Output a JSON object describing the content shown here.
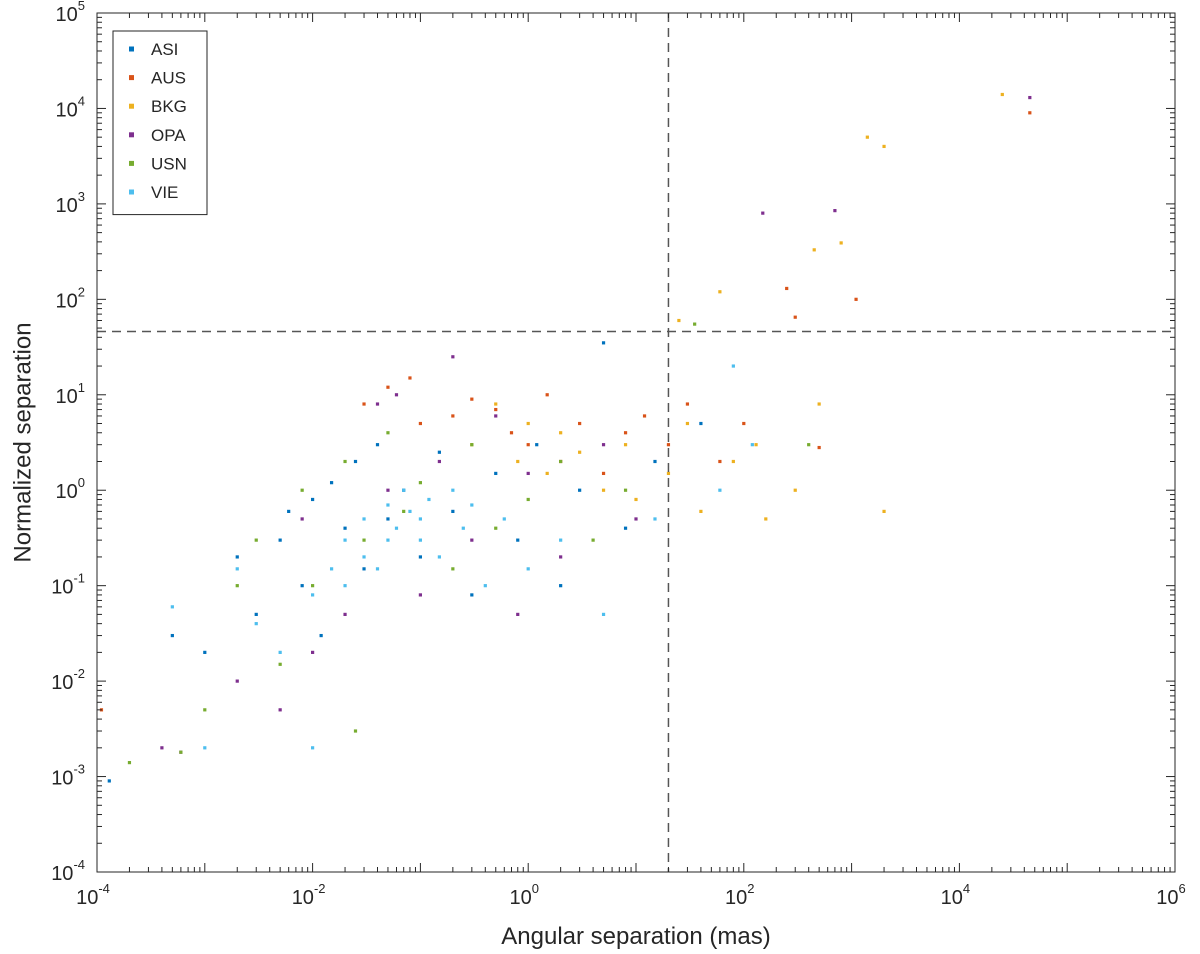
{
  "chart_data": {
    "type": "scatter",
    "x_scale": "log",
    "y_scale": "log",
    "xlabel": "Angular separation (mas)",
    "ylabel": "Normalized separation",
    "xlim": [
      0.0001,
      1000000
    ],
    "ylim": [
      0.0001,
      100000
    ],
    "x_ticks": [
      {
        "base": "10",
        "exp": "-4",
        "value": 0.0001
      },
      {
        "base": "10",
        "exp": "-2",
        "value": 0.01
      },
      {
        "base": "10",
        "exp": "0",
        "value": 1
      },
      {
        "base": "10",
        "exp": "2",
        "value": 100
      },
      {
        "base": "10",
        "exp": "4",
        "value": 10000
      },
      {
        "base": "10",
        "exp": "6",
        "value": 1000000
      }
    ],
    "y_ticks": [
      {
        "base": "10",
        "exp": "-4",
        "value": 0.0001
      },
      {
        "base": "10",
        "exp": "-3",
        "value": 0.001
      },
      {
        "base": "10",
        "exp": "-2",
        "value": 0.01
      },
      {
        "base": "10",
        "exp": "-1",
        "value": 0.1
      },
      {
        "base": "10",
        "exp": "0",
        "value": 1
      },
      {
        "base": "10",
        "exp": "1",
        "value": 10
      },
      {
        "base": "10",
        "exp": "2",
        "value": 100
      },
      {
        "base": "10",
        "exp": "3",
        "value": 1000
      },
      {
        "base": "10",
        "exp": "4",
        "value": 10000
      },
      {
        "base": "10",
        "exp": "5",
        "value": 100000
      }
    ],
    "reference_lines": {
      "x_threshold": 20,
      "y_threshold": 46,
      "style": "dashed"
    },
    "grid": false,
    "legend_position": "top-left",
    "series": [
      {
        "name": "ASI",
        "color": "#0072BD",
        "points": [
          [
            0.00013,
            0.0009
          ],
          [
            0.0005,
            0.03
          ],
          [
            0.001,
            0.02
          ],
          [
            0.002,
            0.2
          ],
          [
            0.003,
            0.05
          ],
          [
            0.005,
            0.3
          ],
          [
            0.006,
            0.6
          ],
          [
            0.008,
            0.1
          ],
          [
            0.01,
            0.8
          ],
          [
            0.012,
            0.03
          ],
          [
            0.015,
            1.2
          ],
          [
            0.02,
            0.4
          ],
          [
            0.025,
            2
          ],
          [
            0.03,
            0.15
          ],
          [
            0.04,
            3
          ],
          [
            0.05,
            0.5
          ],
          [
            0.07,
            1
          ],
          [
            0.1,
            0.2
          ],
          [
            0.15,
            2.5
          ],
          [
            0.2,
            0.6
          ],
          [
            0.3,
            0.08
          ],
          [
            0.5,
            1.5
          ],
          [
            0.8,
            0.3
          ],
          [
            1.2,
            3
          ],
          [
            2,
            0.1
          ],
          [
            3,
            1
          ],
          [
            5,
            35
          ],
          [
            8,
            0.4
          ],
          [
            15,
            2
          ],
          [
            40,
            5
          ]
        ]
      },
      {
        "name": "AUS",
        "color": "#D95319",
        "points": [
          [
            0.00011,
            0.005
          ],
          [
            0.03,
            8
          ],
          [
            0.05,
            12
          ],
          [
            0.08,
            15
          ],
          [
            0.1,
            5
          ],
          [
            0.2,
            6
          ],
          [
            0.3,
            9
          ],
          [
            0.5,
            7
          ],
          [
            0.7,
            4
          ],
          [
            1,
            3
          ],
          [
            1.5,
            10
          ],
          [
            2,
            2
          ],
          [
            3,
            5
          ],
          [
            5,
            1.5
          ],
          [
            8,
            4
          ],
          [
            12,
            6
          ],
          [
            20,
            3
          ],
          [
            30,
            8
          ],
          [
            60,
            2
          ],
          [
            100,
            5
          ],
          [
            250,
            130
          ],
          [
            300,
            65
          ],
          [
            500,
            2.8
          ],
          [
            1100,
            100
          ],
          [
            45000,
            9000
          ]
        ]
      },
      {
        "name": "BKG",
        "color": "#EDB120",
        "points": [
          [
            0.3,
            3
          ],
          [
            0.5,
            8
          ],
          [
            0.8,
            2
          ],
          [
            1,
            5
          ],
          [
            1.5,
            1.5
          ],
          [
            2,
            4
          ],
          [
            3,
            2.5
          ],
          [
            5,
            1
          ],
          [
            8,
            3
          ],
          [
            10,
            0.8
          ],
          [
            20,
            1.5
          ],
          [
            25,
            60
          ],
          [
            30,
            5
          ],
          [
            40,
            0.6
          ],
          [
            60,
            120
          ],
          [
            80,
            2
          ],
          [
            130,
            3
          ],
          [
            160,
            0.5
          ],
          [
            300,
            1
          ],
          [
            450,
            330
          ],
          [
            500,
            8
          ],
          [
            800,
            390
          ],
          [
            1400,
            5000
          ],
          [
            2000,
            4000
          ],
          [
            2000,
            0.6
          ],
          [
            25000,
            14000
          ]
        ]
      },
      {
        "name": "OPA",
        "color": "#7E2F8E",
        "points": [
          [
            0.0004,
            0.002
          ],
          [
            0.0006,
            0.0018
          ],
          [
            0.002,
            0.01
          ],
          [
            0.005,
            0.005
          ],
          [
            0.008,
            0.5
          ],
          [
            0.01,
            0.02
          ],
          [
            0.02,
            0.05
          ],
          [
            0.04,
            8
          ],
          [
            0.05,
            1
          ],
          [
            0.06,
            10
          ],
          [
            0.1,
            0.08
          ],
          [
            0.15,
            2
          ],
          [
            0.2,
            25
          ],
          [
            0.3,
            0.3
          ],
          [
            0.5,
            6
          ],
          [
            0.8,
            0.05
          ],
          [
            1,
            1.5
          ],
          [
            2,
            0.2
          ],
          [
            5,
            3
          ],
          [
            10,
            0.5
          ],
          [
            150,
            800
          ],
          [
            700,
            850
          ],
          [
            45000,
            13000
          ]
        ]
      },
      {
        "name": "USN",
        "color": "#77AC30",
        "points": [
          [
            0.0002,
            0.0014
          ],
          [
            0.0006,
            0.0018
          ],
          [
            0.001,
            0.005
          ],
          [
            0.002,
            0.1
          ],
          [
            0.003,
            0.3
          ],
          [
            0.005,
            0.015
          ],
          [
            0.008,
            1
          ],
          [
            0.01,
            0.1
          ],
          [
            0.02,
            2
          ],
          [
            0.025,
            0.003
          ],
          [
            0.03,
            0.3
          ],
          [
            0.05,
            4
          ],
          [
            0.07,
            0.6
          ],
          [
            0.1,
            1.2
          ],
          [
            0.2,
            0.15
          ],
          [
            0.3,
            3
          ],
          [
            0.5,
            0.4
          ],
          [
            1,
            0.8
          ],
          [
            2,
            2
          ],
          [
            4,
            0.3
          ],
          [
            8,
            1
          ],
          [
            35,
            55
          ],
          [
            400,
            3
          ]
        ]
      },
      {
        "name": "VIE",
        "color": "#4DBEEE",
        "points": [
          [
            0.0005,
            0.06
          ],
          [
            0.001,
            0.002
          ],
          [
            0.002,
            0.15
          ],
          [
            0.003,
            0.04
          ],
          [
            0.005,
            0.02
          ],
          [
            0.01,
            0.08
          ],
          [
            0.01,
            0.002
          ],
          [
            0.015,
            0.15
          ],
          [
            0.02,
            0.3
          ],
          [
            0.02,
            0.1
          ],
          [
            0.03,
            0.5
          ],
          [
            0.03,
            0.2
          ],
          [
            0.04,
            0.15
          ],
          [
            0.05,
            0.7
          ],
          [
            0.05,
            0.3
          ],
          [
            0.06,
            0.4
          ],
          [
            0.07,
            1
          ],
          [
            0.08,
            0.6
          ],
          [
            0.1,
            0.5
          ],
          [
            0.1,
            0.3
          ],
          [
            0.12,
            0.8
          ],
          [
            0.15,
            0.2
          ],
          [
            0.2,
            1
          ],
          [
            0.25,
            0.4
          ],
          [
            0.3,
            0.7
          ],
          [
            0.4,
            0.1
          ],
          [
            0.6,
            0.5
          ],
          [
            1,
            0.15
          ],
          [
            2,
            0.3
          ],
          [
            5,
            0.05
          ],
          [
            15,
            0.5
          ],
          [
            60,
            1
          ],
          [
            80,
            20
          ],
          [
            120,
            3
          ]
        ]
      }
    ]
  }
}
